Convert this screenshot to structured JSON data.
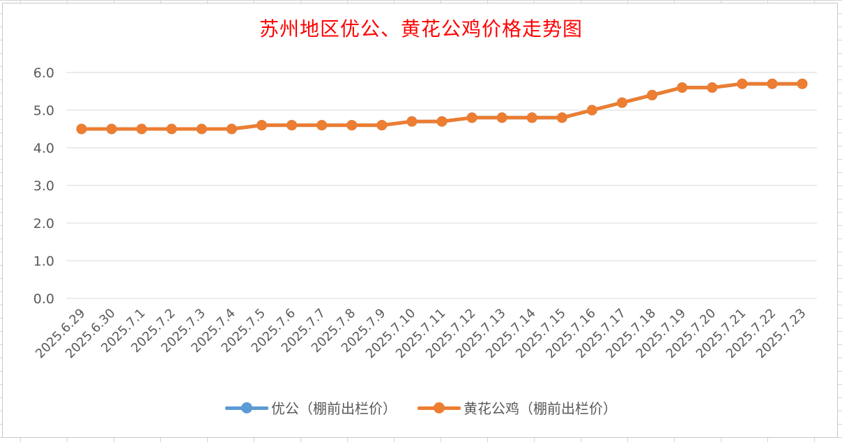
{
  "chart_data": {
    "type": "line",
    "title": "苏州地区优公、黄花公鸡价格走势图",
    "title_color": "#ff0000",
    "xlabel": "",
    "ylabel": "",
    "ylim": [
      0,
      6
    ],
    "yticks": [
      "0.0",
      "1.0",
      "2.0",
      "3.0",
      "4.0",
      "5.0",
      "6.0"
    ],
    "grid": true,
    "legend_position": "bottom",
    "categories": [
      "2025.6.29",
      "2025.6.30",
      "2025.7.1",
      "2025.7.2",
      "2025.7.3",
      "2025.7.4",
      "2025.7.5",
      "2025.7.6",
      "2025.7.7",
      "2025.7.8",
      "2025.7.9",
      "2025.7.10",
      "2025.7.11",
      "2025.7.12",
      "2025.7.13",
      "2025.7.14",
      "2025.7.15",
      "2025.7.16",
      "2025.7.17",
      "2025.7.18",
      "2025.7.19",
      "2025.7.20",
      "2025.7.21",
      "2025.7.22",
      "2025.7.23"
    ],
    "series": [
      {
        "name": "优公（棚前出栏价）",
        "color": "#5b9bd5",
        "values": [
          4.5,
          4.5,
          4.5,
          4.5,
          4.5,
          4.5,
          4.6,
          4.6,
          4.6,
          4.6,
          4.6,
          4.7,
          4.7,
          4.8,
          4.8,
          4.8,
          4.8,
          5.0,
          5.2,
          5.4,
          5.6,
          5.6,
          5.7,
          5.7,
          5.7
        ]
      },
      {
        "name": "黄花公鸡（棚前出栏价）",
        "color": "#ed7d31",
        "values": [
          4.5,
          4.5,
          4.5,
          4.5,
          4.5,
          4.5,
          4.6,
          4.6,
          4.6,
          4.6,
          4.6,
          4.7,
          4.7,
          4.8,
          4.8,
          4.8,
          4.8,
          5.0,
          5.2,
          5.4,
          5.6,
          5.6,
          5.7,
          5.7,
          5.7
        ]
      }
    ]
  }
}
